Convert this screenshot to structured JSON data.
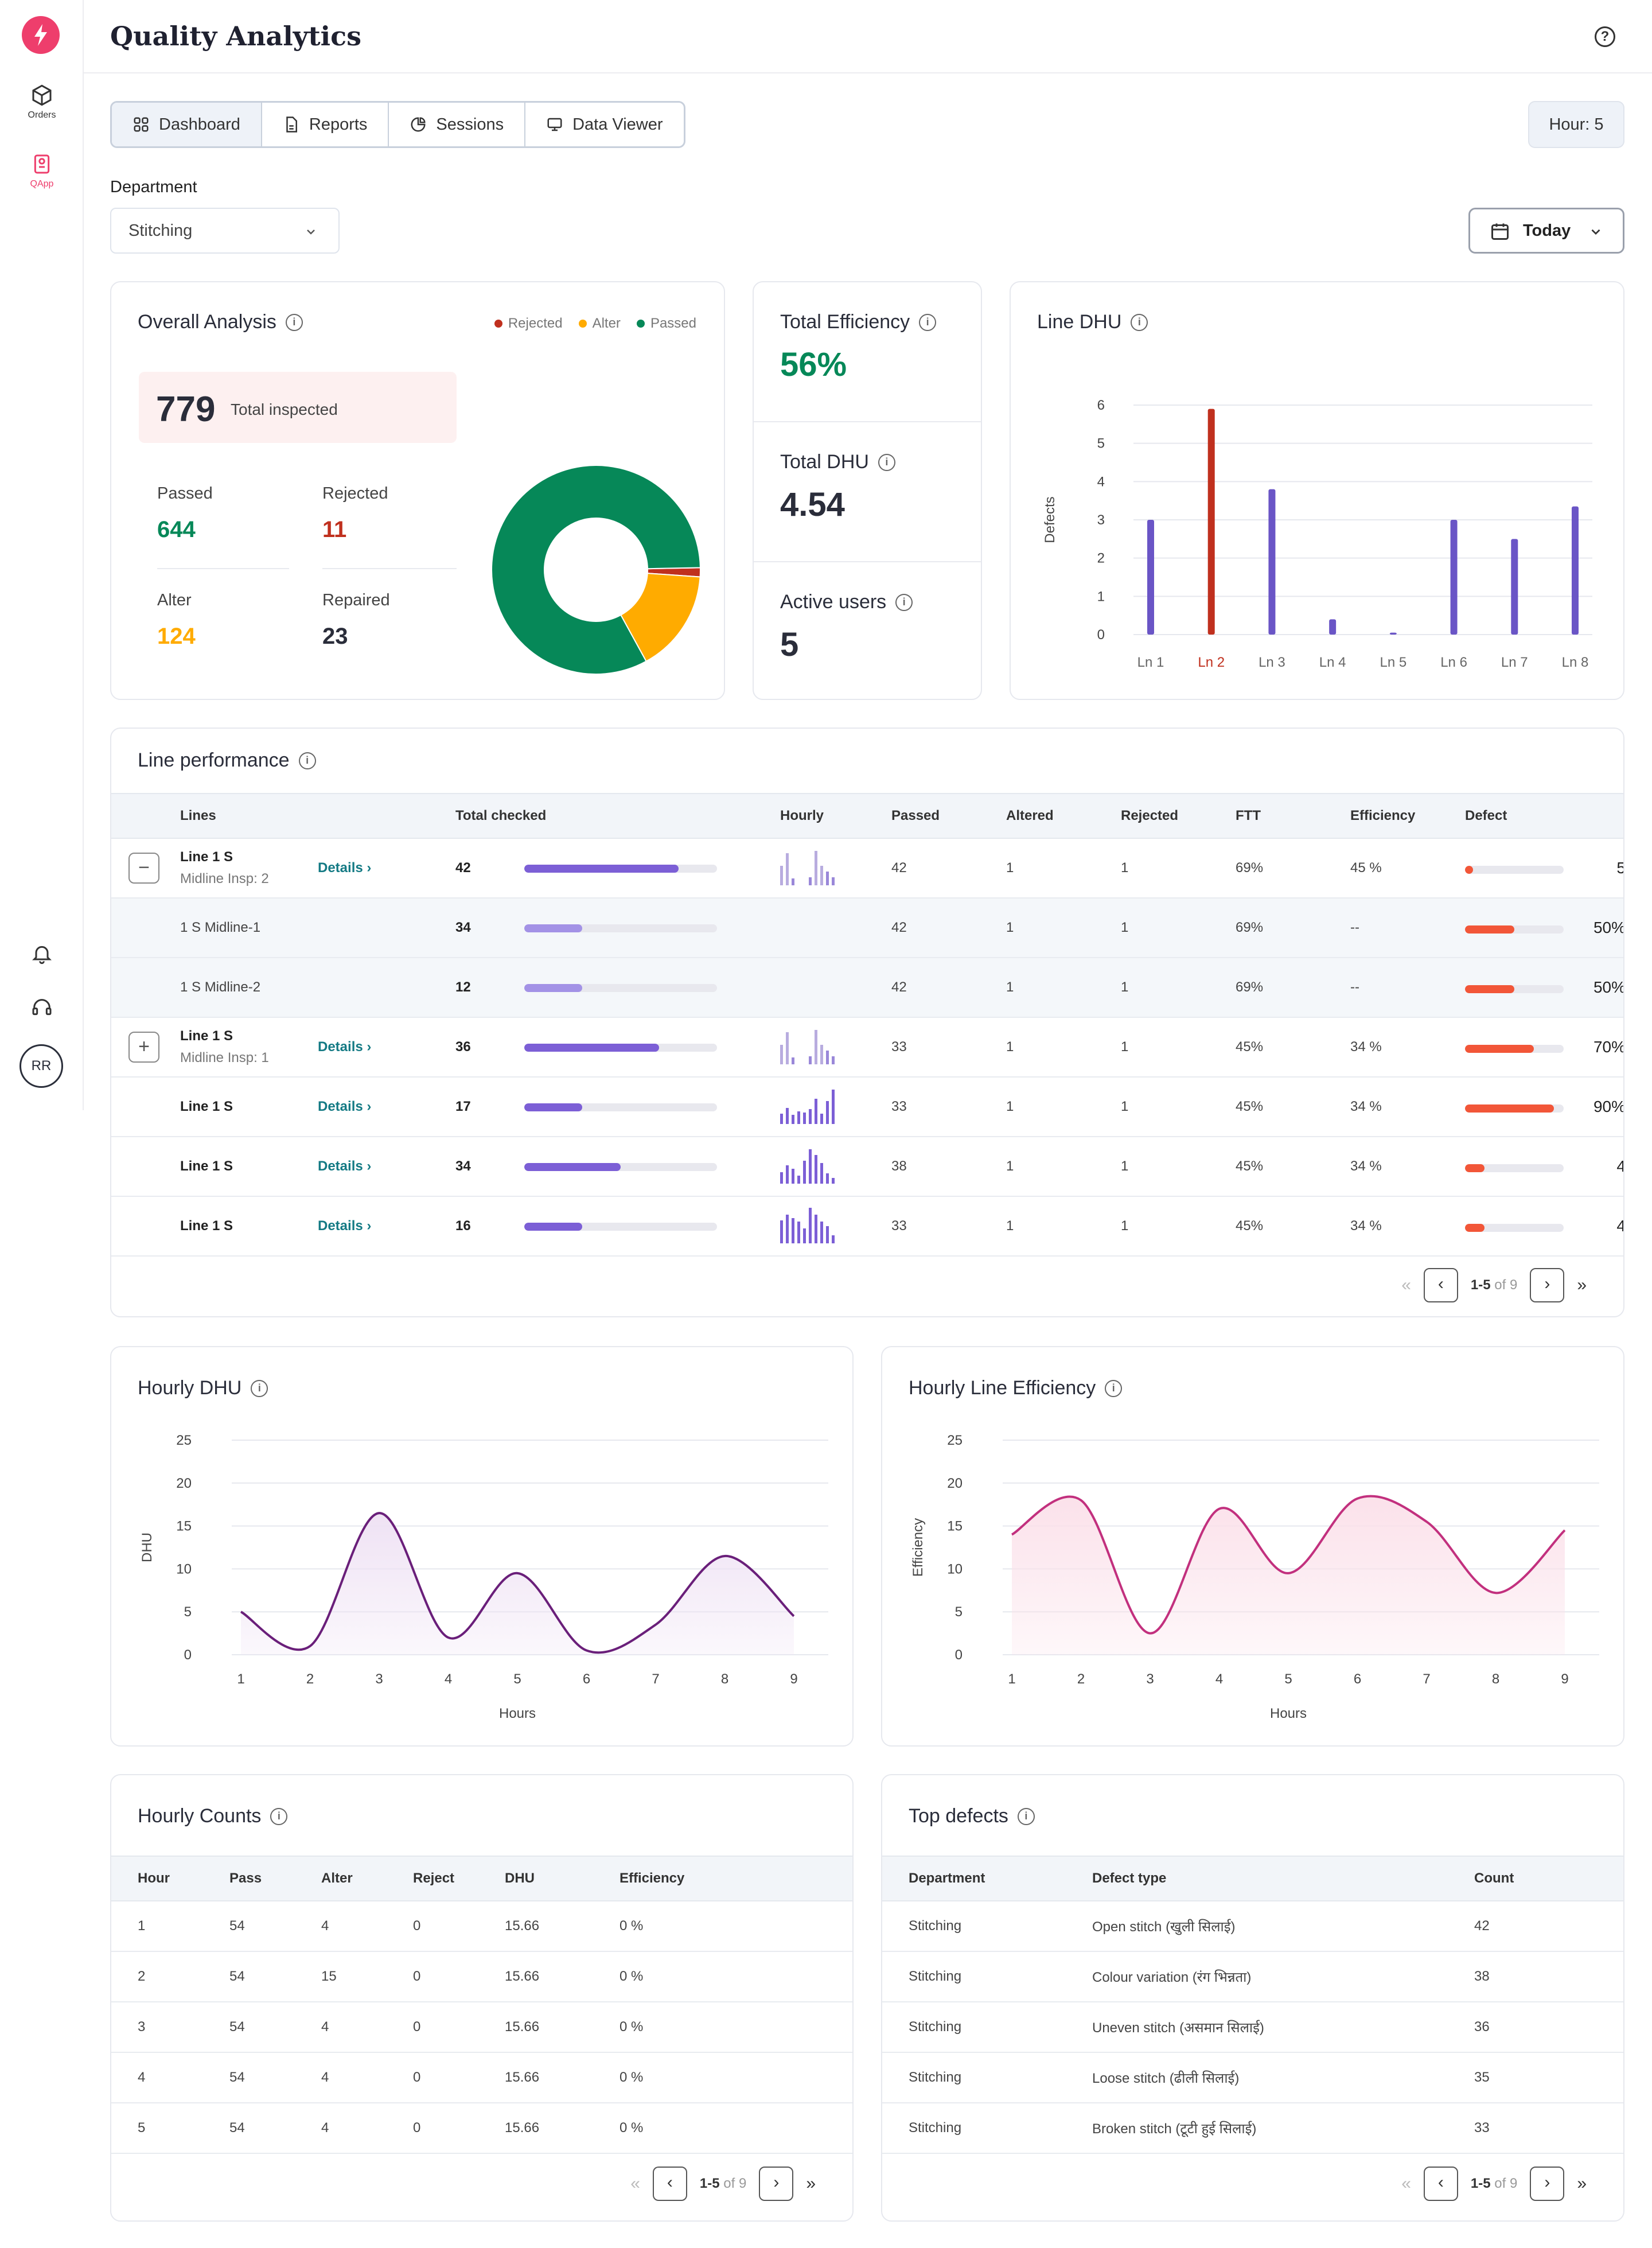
{
  "app": {
    "title": "Quality Analytics"
  },
  "sidebar": {
    "items": [
      {
        "label": "Orders",
        "icon": "box-icon"
      },
      {
        "label": "QApp",
        "icon": "clipboard-icon"
      }
    ],
    "avatar": "RR"
  },
  "tabs": [
    {
      "label": "Dashboard",
      "icon": "grid-icon",
      "active": true
    },
    {
      "label": "Reports",
      "icon": "document-icon"
    },
    {
      "label": "Sessions",
      "icon": "pie-icon"
    },
    {
      "label": "Data Viewer",
      "icon": "monitor-icon"
    }
  ],
  "hour_pill": "Hour: 5",
  "department": {
    "label": "Department",
    "value": "Stitching"
  },
  "date_filter": "Today",
  "overall": {
    "title": "Overall Analysis",
    "legend": [
      {
        "label": "Rejected",
        "color": "#c0301e"
      },
      {
        "label": "Alter",
        "color": "#ffab00"
      },
      {
        "label": "Passed",
        "color": "#068858"
      }
    ],
    "total": "779",
    "total_label": "Total inspected",
    "passed": {
      "label": "Passed",
      "value": "644"
    },
    "rejected": {
      "label": "Rejected",
      "value": "11"
    },
    "alter": {
      "label": "Alter",
      "value": "124"
    },
    "repaired": {
      "label": "Repaired",
      "value": "23"
    }
  },
  "metrics": {
    "efficiency": {
      "label": "Total Efficiency",
      "value": "56%"
    },
    "dhu": {
      "label": "Total DHU",
      "value": "4.54"
    },
    "users": {
      "label": "Active users",
      "value": "5"
    }
  },
  "line_dhu": {
    "title": "Line DHU",
    "chart_data": {
      "type": "bar",
      "ylabel": "Defects",
      "ylim": [
        0,
        6
      ],
      "yticks": [
        "0",
        "1",
        "2",
        "3",
        "4",
        "5",
        "6"
      ],
      "categories": [
        "Ln 1",
        "Ln 2",
        "Ln 3",
        "Ln 4",
        "Ln 5",
        "Ln 6",
        "Ln 7",
        "Ln 8"
      ],
      "values": [
        3.0,
        5.9,
        3.8,
        0.4,
        0.05,
        3.0,
        2.5,
        3.35
      ],
      "highlight": "Ln 2",
      "colors": {
        "bar": "#6a55c6",
        "highlight": "#c0301e"
      }
    }
  },
  "line_performance": {
    "title": "Line performance",
    "headers": [
      "Lines",
      "Total checked",
      "Hourly",
      "Passed",
      "Altered",
      "Rejected",
      "FTT",
      "Efficiency",
      "Defect"
    ],
    "details_label": "Details",
    "rows": [
      {
        "expander": "−",
        "name": "Line 1 S",
        "sub": "Midline Insp: 2",
        "details": true,
        "total": "42",
        "fill": 0.8,
        "spark": "ghost",
        "passed": "42",
        "altered": "1",
        "rejected": "1",
        "ftt": "69%",
        "eff": "45 %",
        "defect_fill": 0.08,
        "defect": "5"
      },
      {
        "sub_row": true,
        "name": "1 S Midline-1",
        "total": "34",
        "fill": 0.3,
        "passed": "42",
        "altered": "1",
        "rejected": "1",
        "ftt": "69%",
        "eff": "--",
        "defect_fill": 0.5,
        "defect": "50%"
      },
      {
        "sub_row": true,
        "name": "1 S Midline-2",
        "total": "12",
        "fill": 0.3,
        "passed": "42",
        "altered": "1",
        "rejected": "1",
        "ftt": "69%",
        "eff": "--",
        "defect_fill": 0.5,
        "defect": "50%"
      },
      {
        "expander": "+",
        "name": "Line 1 S",
        "sub": "Midline Insp: 1",
        "details": true,
        "total": "36",
        "fill": 0.7,
        "spark": "ghost",
        "passed": "33",
        "altered": "1",
        "rejected": "1",
        "ftt": "45%",
        "eff": "34 %",
        "defect_fill": 0.7,
        "defect": "70%"
      },
      {
        "name": "Line 1 S",
        "details": true,
        "total": "17",
        "fill": 0.3,
        "spark": "a",
        "passed": "33",
        "altered": "1",
        "rejected": "1",
        "ftt": "45%",
        "eff": "34 %",
        "defect_fill": 0.9,
        "defect": "90%"
      },
      {
        "name": "Line 1 S",
        "details": true,
        "total": "34",
        "fill": 0.5,
        "spark": "b",
        "passed": "38",
        "altered": "1",
        "rejected": "1",
        "ftt": "45%",
        "eff": "34 %",
        "defect_fill": 0.2,
        "defect": "4"
      },
      {
        "name": "Line 1 S",
        "details": true,
        "total": "16",
        "fill": 0.3,
        "spark": "c",
        "passed": "33",
        "altered": "1",
        "rejected": "1",
        "ftt": "45%",
        "eff": "34 %",
        "defect_fill": 0.2,
        "defect": "4"
      }
    ],
    "pager": {
      "range": "1-5",
      "of": "of 9"
    }
  },
  "hourly_dhu": {
    "title": "Hourly DHU",
    "chart_data": {
      "type": "area",
      "xlabel": "Hours",
      "ylabel": "DHU",
      "ylim": [
        0,
        25
      ],
      "yticks": [
        "0",
        "5",
        "10",
        "15",
        "20",
        "25"
      ],
      "x": [
        "1",
        "2",
        "3",
        "4",
        "5",
        "6",
        "7",
        "8",
        "9"
      ],
      "values": [
        5,
        1,
        16.5,
        2,
        9.5,
        0.5,
        3.5,
        11.5,
        4.5
      ],
      "colors": {
        "line": "#6a1f7a",
        "fill": "#efe2f4"
      }
    }
  },
  "hourly_eff": {
    "title": "Hourly Line Efficiency",
    "chart_data": {
      "type": "area",
      "xlabel": "Hours",
      "ylabel": "Efficiency",
      "ylim": [
        0,
        25
      ],
      "yticks": [
        "0",
        "5",
        "10",
        "15",
        "20",
        "25"
      ],
      "x": [
        "1",
        "2",
        "3",
        "4",
        "5",
        "6",
        "7",
        "8",
        "9"
      ],
      "values": [
        14,
        18,
        2.5,
        17,
        9.5,
        18.2,
        15.5,
        7.2,
        14.5
      ],
      "colors": {
        "line": "#c2307e",
        "fill": "#fbe1ea"
      }
    }
  },
  "hourly_counts": {
    "title": "Hourly Counts",
    "headers": [
      "Hour",
      "Pass",
      "Alter",
      "Reject",
      "DHU",
      "Efficiency"
    ],
    "rows": [
      [
        "1",
        "54",
        "4",
        "0",
        "15.66",
        "0 %"
      ],
      [
        "2",
        "54",
        "15",
        "0",
        "15.66",
        "0 %"
      ],
      [
        "3",
        "54",
        "4",
        "0",
        "15.66",
        "0 %"
      ],
      [
        "4",
        "54",
        "4",
        "0",
        "15.66",
        "0 %"
      ],
      [
        "5",
        "54",
        "4",
        "0",
        "15.66",
        "0 %"
      ]
    ],
    "pager": {
      "range": "1-5",
      "of": "of 9"
    }
  },
  "top_defects": {
    "title": "Top defects",
    "headers": [
      "Department",
      "Defect type",
      "Count"
    ],
    "rows": [
      [
        "Stitching",
        "Open stitch (खुली सिलाई)",
        "42"
      ],
      [
        "Stitching",
        "Colour variation (रंग भिन्नता)",
        "38"
      ],
      [
        "Stitching",
        "Uneven stitch (असमान सिलाई)",
        "36"
      ],
      [
        "Stitching",
        "Loose stitch (ढीली सिलाई)",
        "35"
      ],
      [
        "Stitching",
        "Broken stitch (टूटी हुई सिलाई)",
        "33"
      ]
    ],
    "pager": {
      "range": "1-5",
      "of": "of 9"
    }
  }
}
